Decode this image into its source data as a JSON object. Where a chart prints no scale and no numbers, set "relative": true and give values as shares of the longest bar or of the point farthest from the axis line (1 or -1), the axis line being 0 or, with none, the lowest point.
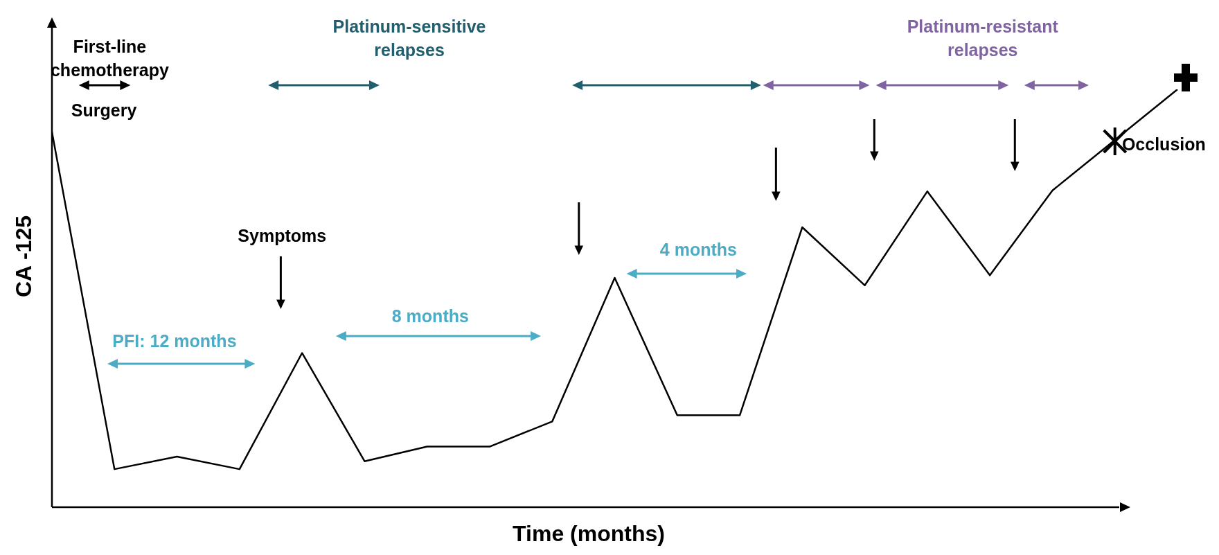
{
  "chart_data": {
    "type": "line",
    "relative": true,
    "xlabel": "Time (months)",
    "ylabel": "CA -125",
    "categories": [
      null,
      null,
      null,
      null,
      null,
      null,
      null,
      null,
      null,
      null,
      null,
      null,
      null,
      null,
      null,
      null,
      null,
      null,
      null
    ],
    "series": [
      {
        "color": "#000000",
        "values": [
          0.898,
          0.091,
          0.121,
          0.091,
          0.369,
          0.11,
          0.145,
          0.145,
          0.205,
          0.549,
          0.22,
          0.22,
          0.67,
          0.531,
          0.756,
          0.555,
          0.758,
          0.879,
          1.0
        ]
      }
    ],
    "annotations": [
      "First-line chemotherapy",
      "Surgery",
      "Platinum-sensitive relapses",
      "Platinum-resistant relapses",
      "Symptoms",
      "PFI: 12 months",
      "8 months",
      "4 months",
      "Occlusion"
    ]
  }
}
